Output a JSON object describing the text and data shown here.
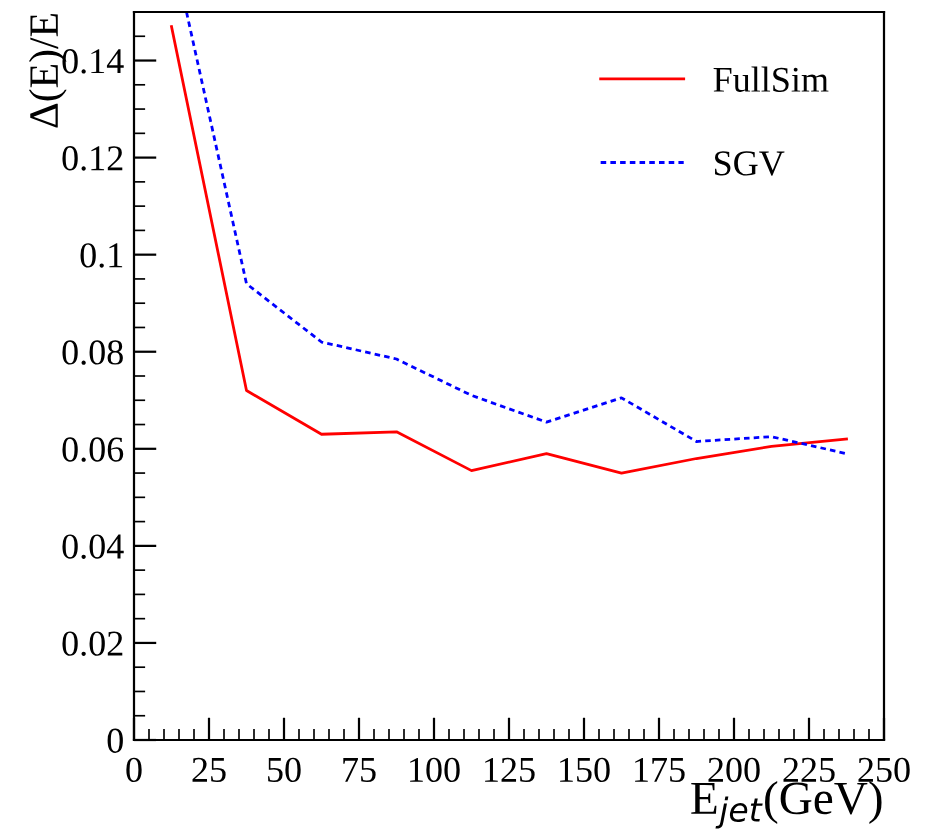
{
  "chart_data": {
    "type": "line",
    "xlabel": "E$_{jet}$(GeV)",
    "ylabel": "Δ(E)/E",
    "series": [
      {
        "name": "FullSim",
        "color": "#ff0000",
        "line_style": "solid",
        "x": [
          12.5,
          37.5,
          62.5,
          87.5,
          112.5,
          137.5,
          162.5,
          187.5,
          212.5,
          237.5
        ],
        "values": [
          0.147,
          0.072,
          0.063,
          0.0635,
          0.0555,
          0.059,
          0.055,
          0.058,
          0.0605,
          0.062
        ]
      },
      {
        "name": "SGV",
        "color": "#0000ff",
        "line_style": "dotted",
        "x": [
          17.5,
          37.5,
          62.5,
          87.5,
          112.5,
          137.5,
          162.5,
          187.5,
          212.5,
          237.5
        ],
        "values": [
          0.15,
          0.094,
          0.082,
          0.0785,
          0.071,
          0.0655,
          0.0705,
          0.0615,
          0.0625,
          0.059
        ]
      }
    ],
    "xlim": [
      0,
      250
    ],
    "xticks": [
      0,
      25,
      50,
      75,
      100,
      125,
      150,
      175,
      200,
      225,
      250
    ],
    "ylim": [
      0,
      0.15
    ],
    "yticks": [
      0,
      0.02,
      0.04,
      0.06,
      0.08,
      0.1,
      0.12,
      0.14
    ],
    "grid": false,
    "legend": "top right",
    "marker": "none"
  }
}
